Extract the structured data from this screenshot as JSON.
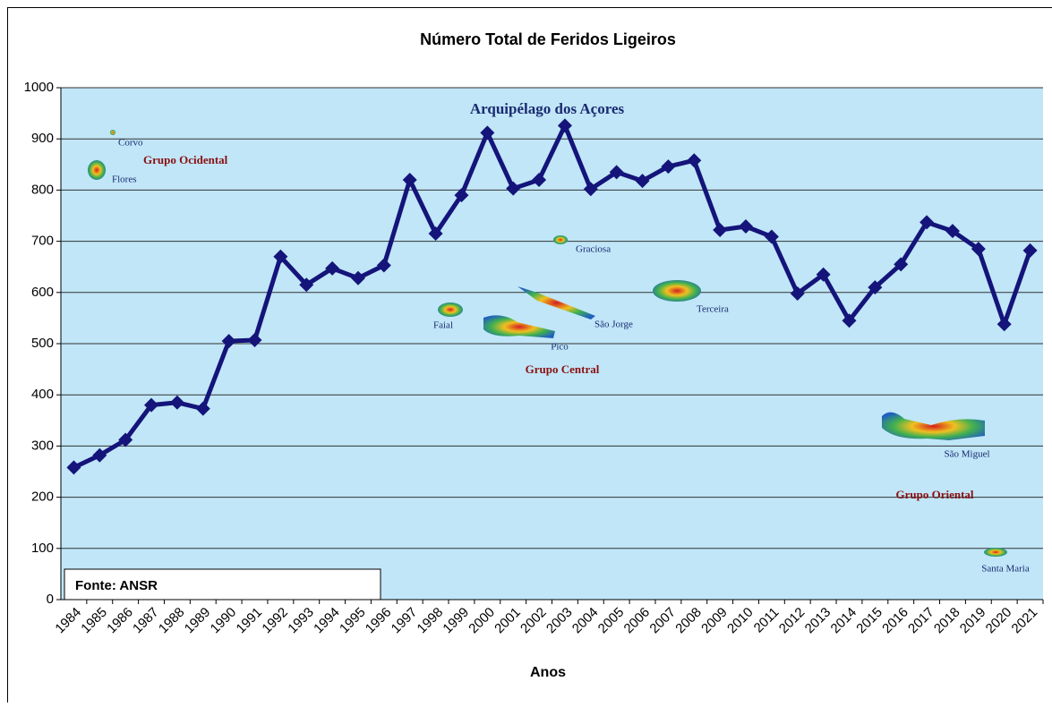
{
  "chart_data": {
    "type": "line",
    "title": "Número Total de Feridos Ligeiros",
    "x_label": "Anos",
    "categories": [
      "1984",
      "1985",
      "1986",
      "1987",
      "1988",
      "1989",
      "1990",
      "1991",
      "1992",
      "1993",
      "1994",
      "1995",
      "1996",
      "1997",
      "1998",
      "1999",
      "2000",
      "2001",
      "2002",
      "2003",
      "2004",
      "2005",
      "2006",
      "2007",
      "2008",
      "2009",
      "2010",
      "2011",
      "2012",
      "2013",
      "2014",
      "2015",
      "2016",
      "2017",
      "2018",
      "2019",
      "2020",
      "2021"
    ],
    "values": [
      258,
      282,
      312,
      380,
      385,
      373,
      505,
      507,
      670,
      615,
      647,
      628,
      653,
      820,
      715,
      790,
      912,
      803,
      820,
      926,
      802,
      835,
      818,
      846,
      858,
      722,
      729,
      709,
      598,
      635,
      545,
      610,
      655,
      737,
      720,
      685,
      538,
      682
    ],
    "color": "#14147a",
    "ylim": [
      0,
      1000
    ],
    "yticks": [
      0,
      100,
      200,
      300,
      400,
      500,
      600,
      700,
      800,
      900,
      1000
    ],
    "grid": true,
    "source": "Fonte: ANSR",
    "annotations": [
      "Arquipélago dos Açores",
      "Corvo",
      "Grupo Ocidental",
      "Flores",
      "Graciosa",
      "Faial",
      "São Jorge",
      "Terceira",
      "Pico",
      "Grupo Central",
      "São Miguel",
      "Grupo Oriental",
      "Santa Maria"
    ]
  }
}
